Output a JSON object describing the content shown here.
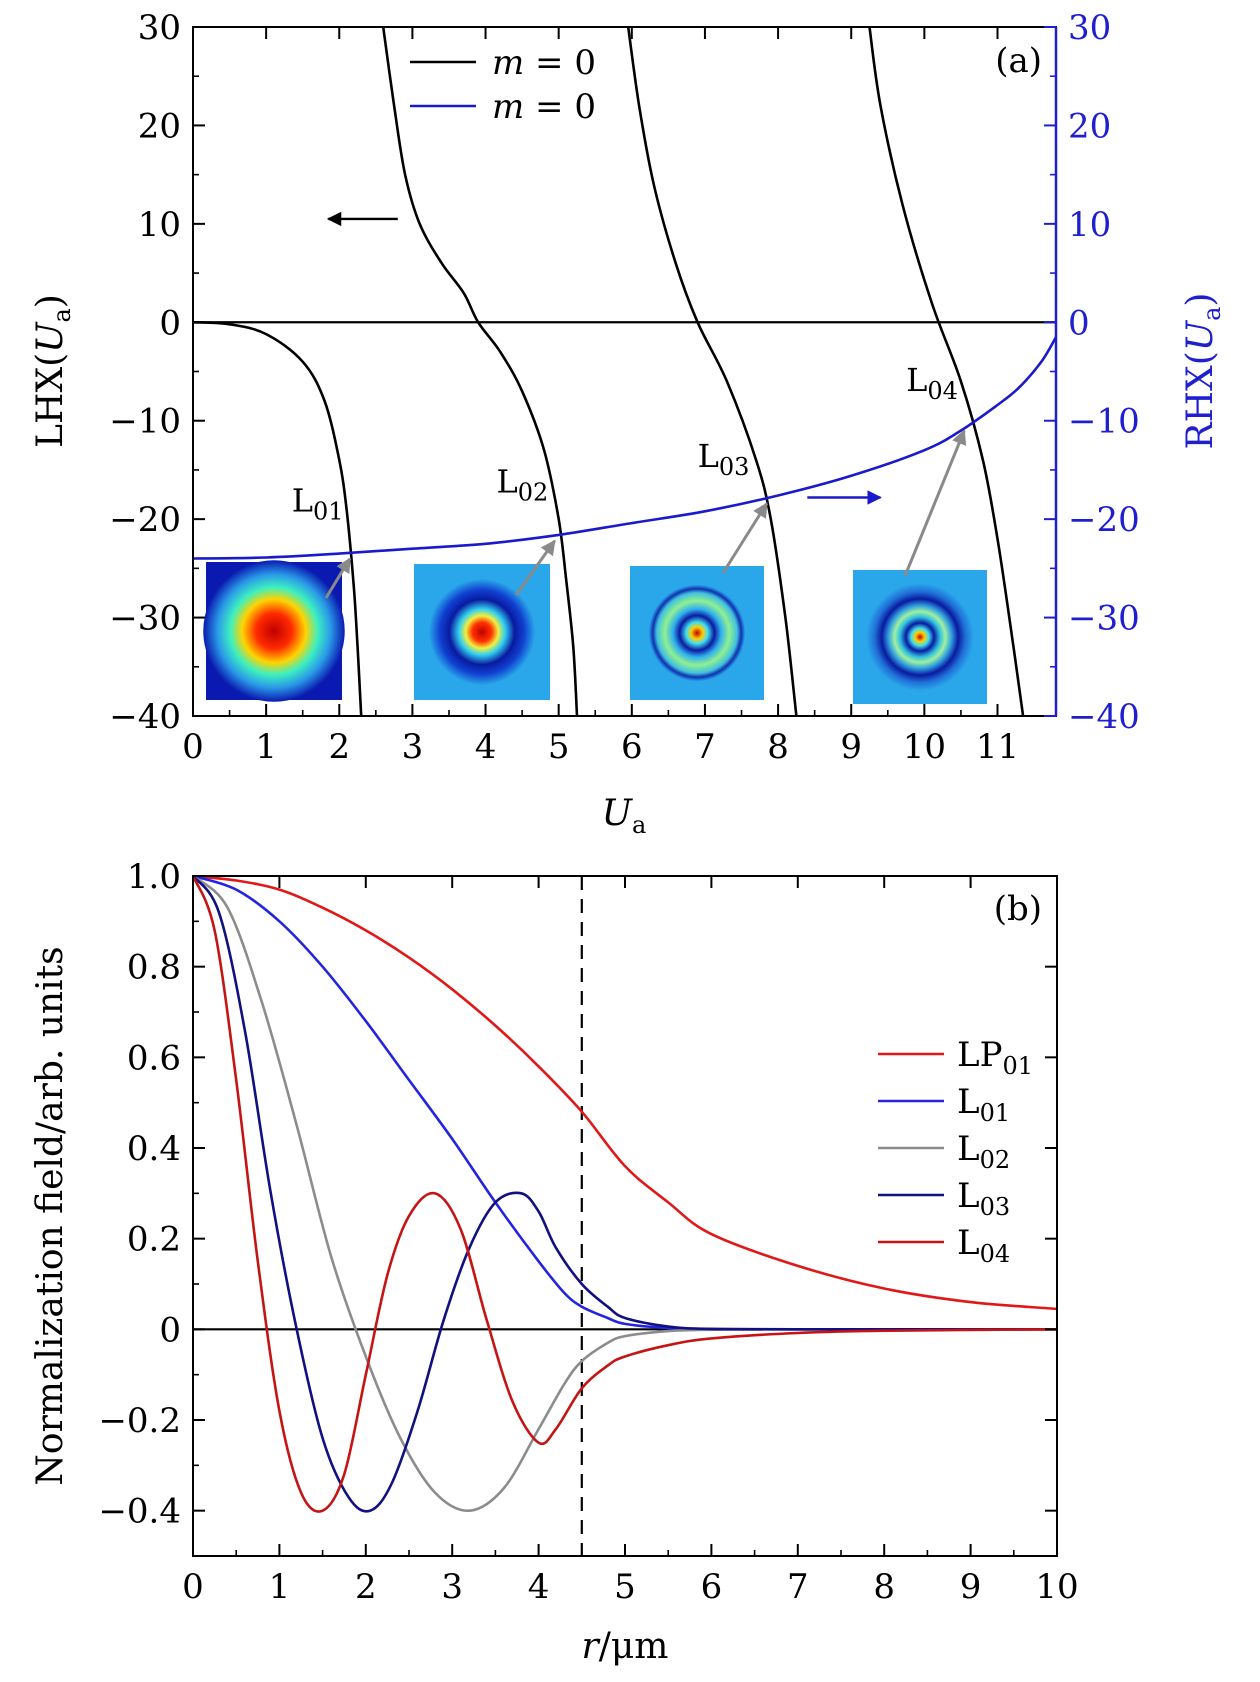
{
  "figure": {
    "colors": {
      "black": "#000000",
      "blue_axis": "#1f1fd0",
      "rhx_curve": "#1a1acc",
      "arrow_gray": "#8a8a8a",
      "lp01": "#e01818",
      "l01": "#2424e0",
      "l02": "#8c8c8c",
      "l03": "#101080",
      "l04": "#c41414",
      "inset_bg": "#2aa6ea"
    }
  },
  "chart_data": [
    {
      "panel": "(a)",
      "type": "line",
      "xlabel": "U_a",
      "ylabel_left": "LHX(U_a)",
      "ylabel_right": "RHX(U_a)",
      "xlim": [
        0,
        11.8
      ],
      "ylim_left": [
        -40,
        30
      ],
      "ylim_right": [
        -40,
        30
      ],
      "xticks": [
        "0",
        "1",
        "2",
        "3",
        "4",
        "5",
        "6",
        "7",
        "8",
        "9",
        "10",
        "11"
      ],
      "yticks_left": [
        "30",
        "20",
        "10",
        "0",
        "−10",
        "−20",
        "−30",
        "−40"
      ],
      "yticks_right": [
        "30",
        "20",
        "10",
        "0",
        "−10",
        "−20",
        "−30",
        "−40"
      ],
      "legend": [
        {
          "label": "m = 0",
          "color": "#000000"
        },
        {
          "label": "m = 0",
          "color": "#1a1acc"
        }
      ],
      "legend_position": "top-center",
      "series": [
        {
          "axis": "left",
          "color": "#000000",
          "x": [
            0,
            0.5,
            1.0,
            1.5,
            1.8,
            2.0,
            2.1,
            2.2,
            2.25,
            2.3
          ],
          "y": [
            0,
            -0.2,
            -1.2,
            -4,
            -8,
            -14,
            -19,
            -27,
            -33,
            -40
          ]
        },
        {
          "axis": "left",
          "color": "#000000",
          "x": [
            2.6,
            2.75,
            2.9,
            3.1,
            3.4,
            3.7,
            3.9,
            4.2,
            4.5,
            4.8,
            5.0,
            5.1,
            5.2,
            5.25
          ],
          "y": [
            30,
            22,
            15,
            10,
            6,
            3,
            0,
            -3,
            -7,
            -13,
            -20,
            -26,
            -33,
            -40
          ]
        },
        {
          "axis": "left",
          "color": "#000000",
          "x": [
            5.95,
            6.1,
            6.3,
            6.6,
            6.9,
            7.3,
            7.7,
            7.9,
            8.1,
            8.25
          ],
          "y": [
            30,
            22,
            14,
            6,
            0,
            -6,
            -14,
            -20,
            -30,
            -40
          ]
        },
        {
          "axis": "left",
          "color": "#000000",
          "x": [
            9.25,
            9.4,
            9.7,
            10.1,
            10.5,
            10.8,
            11.0,
            11.2,
            11.35
          ],
          "y": [
            30,
            22,
            12,
            2,
            -6,
            -14,
            -22,
            -32,
            -40
          ]
        },
        {
          "axis": "right",
          "color": "#1a1acc",
          "x": [
            0,
            1,
            2,
            3,
            4,
            5,
            6,
            7,
            8,
            9,
            10,
            10.5,
            11,
            11.3,
            11.6,
            11.8
          ],
          "y": [
            -24,
            -23.9,
            -23.5,
            -23,
            -22.5,
            -21.6,
            -20.4,
            -19.2,
            -17.6,
            -15.6,
            -13,
            -11,
            -8.4,
            -6.6,
            -4,
            -1.5
          ]
        }
      ],
      "marker_labels": [
        {
          "label": "L01",
          "sub": "01",
          "x": 2.2,
          "y": -23.4
        },
        {
          "label": "L02",
          "sub": "02",
          "x": 5.0,
          "y": -21.6
        },
        {
          "label": "L03",
          "sub": "03",
          "x": 7.9,
          "y": -17.8
        },
        {
          "label": "L04",
          "sub": "04",
          "x": 10.6,
          "y": -10.4
        }
      ],
      "panel_tag": "(a)",
      "insets": [
        "L01 mode profile",
        "L02 mode profile",
        "L03 mode profile",
        "L04 mode profile"
      ]
    },
    {
      "panel": "(b)",
      "type": "line",
      "xlabel": "r/μm",
      "ylabel": "Normalization field/arb. units",
      "xlim": [
        0,
        10
      ],
      "ylim": [
        -0.5,
        1.0
      ],
      "xticks": [
        "0",
        "1",
        "2",
        "3",
        "4",
        "5",
        "6",
        "7",
        "8",
        "9",
        "10"
      ],
      "yticks": [
        "1.0",
        "0.8",
        "0.6",
        "0.4",
        "0.2",
        "0",
        "−0.2",
        "−0.4"
      ],
      "vline_x": 4.5,
      "legend_position": "right",
      "series": [
        {
          "name": "LP",
          "sub": "01",
          "color": "#e01818",
          "x": [
            0,
            0.5,
            1,
            1.5,
            2,
            2.5,
            3,
            3.5,
            4,
            4.5,
            5,
            5.5,
            6,
            7,
            8,
            9,
            10
          ],
          "y": [
            1,
            0.99,
            0.97,
            0.93,
            0.88,
            0.82,
            0.75,
            0.67,
            0.58,
            0.48,
            0.36,
            0.28,
            0.21,
            0.14,
            0.09,
            0.06,
            0.045
          ]
        },
        {
          "name": "L",
          "sub": "01",
          "color": "#2424e0",
          "x": [
            0,
            0.5,
            1,
            1.5,
            2,
            2.5,
            3,
            3.5,
            4,
            4.3,
            4.5,
            4.8,
            5,
            5.5,
            6,
            7,
            10
          ],
          "y": [
            1,
            0.97,
            0.9,
            0.8,
            0.68,
            0.55,
            0.42,
            0.28,
            0.15,
            0.08,
            0.05,
            0.025,
            0.012,
            0.003,
            0.001,
            0,
            0
          ]
        },
        {
          "name": "L",
          "sub": "02",
          "color": "#8c8c8c",
          "x": [
            0,
            0.4,
            0.8,
            1.2,
            1.6,
            2.0,
            2.4,
            2.8,
            3.2,
            3.6,
            4.0,
            4.3,
            4.5,
            4.8,
            5,
            5.5,
            6,
            7,
            10
          ],
          "y": [
            1,
            0.93,
            0.72,
            0.45,
            0.16,
            -0.06,
            -0.24,
            -0.36,
            -0.4,
            -0.35,
            -0.22,
            -0.12,
            -0.07,
            -0.03,
            -0.015,
            -0.004,
            -0.001,
            0,
            0
          ]
        },
        {
          "name": "L",
          "sub": "03",
          "color": "#101080",
          "x": [
            0,
            0.3,
            0.6,
            0.9,
            1.2,
            1.5,
            1.8,
            2.05,
            2.3,
            2.6,
            2.9,
            3.2,
            3.5,
            3.8,
            4.0,
            4.2,
            4.5,
            4.8,
            5,
            5.5,
            6,
            7,
            10
          ],
          "y": [
            1,
            0.92,
            0.66,
            0.3,
            0.0,
            -0.24,
            -0.37,
            -0.4,
            -0.34,
            -0.18,
            0.02,
            0.18,
            0.28,
            0.3,
            0.26,
            0.18,
            0.1,
            0.05,
            0.025,
            0.006,
            0.001,
            0,
            0
          ]
        },
        {
          "name": "L",
          "sub": "04",
          "color": "#c41414",
          "x": [
            0,
            0.25,
            0.5,
            0.75,
            1.0,
            1.25,
            1.5,
            1.75,
            2.0,
            2.25,
            2.5,
            2.8,
            3.1,
            3.4,
            3.7,
            4.0,
            4.2,
            4.5,
            4.8,
            5,
            5.5,
            6,
            7,
            8,
            10
          ],
          "y": [
            1,
            0.88,
            0.55,
            0.15,
            -0.18,
            -0.36,
            -0.4,
            -0.32,
            -0.1,
            0.12,
            0.25,
            0.3,
            0.22,
            0.02,
            -0.16,
            -0.25,
            -0.22,
            -0.13,
            -0.08,
            -0.06,
            -0.035,
            -0.02,
            -0.008,
            -0.003,
            0
          ]
        }
      ],
      "panel_tag": "(b)"
    }
  ]
}
